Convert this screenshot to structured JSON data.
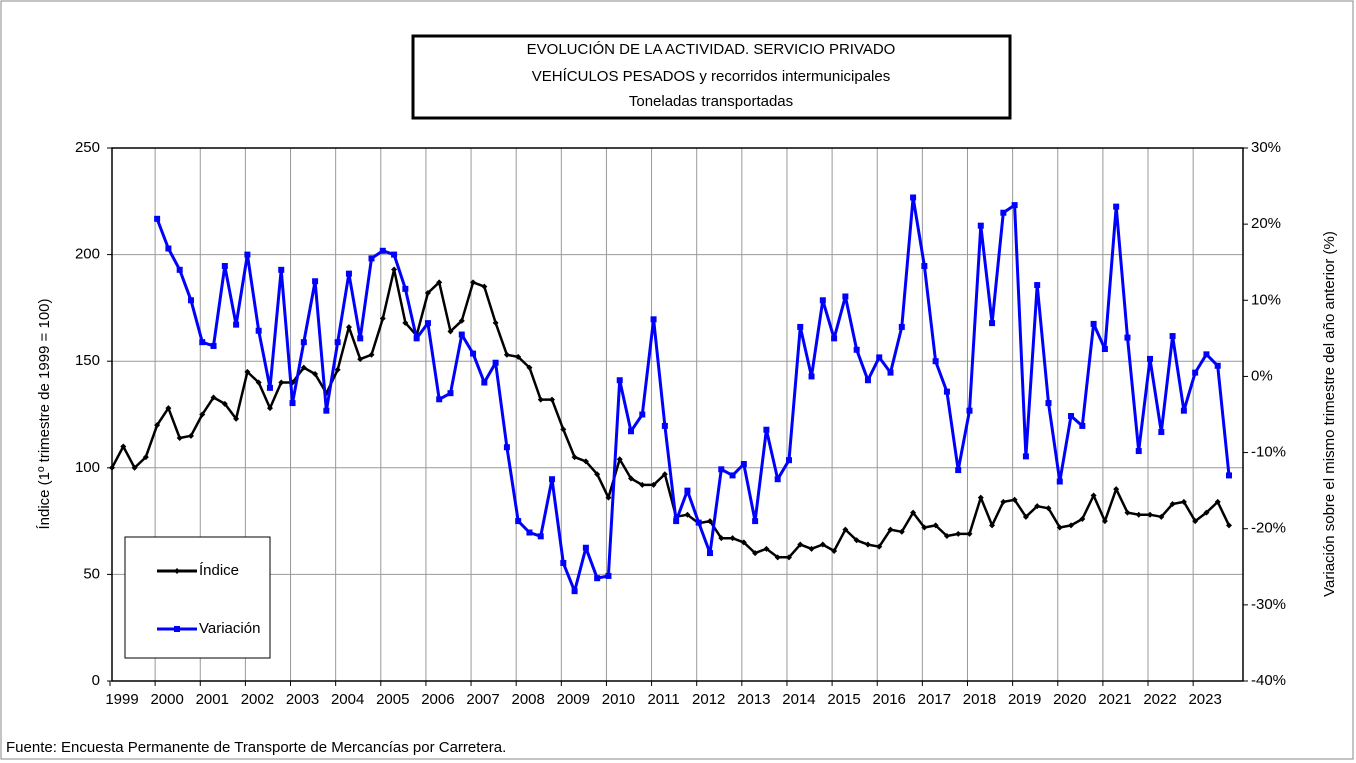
{
  "chart_data": {
    "type": "line",
    "title": [
      "EVOLUCIÓN  DE LA ACTIVIDAD.  SERVICIO  PRIVADO",
      "VEHÍCULOS    PESADOS   y  recorridos  intermunicipales",
      "Toneladas transportadas"
    ],
    "ylabel": "Índice (1º trimestre de 1999 = 100)",
    "y2label": "Variación sobre el mismo trimestre del año anterior (%)",
    "source": "Fuente: Encuesta Permanente de Transporte de Mercancías por Carretera.",
    "categories": [
      "1999",
      null,
      null,
      null,
      "2000",
      null,
      null,
      null,
      "2001",
      null,
      null,
      null,
      "2002",
      null,
      null,
      null,
      "2003",
      null,
      null,
      null,
      "2004",
      null,
      null,
      null,
      "2005",
      null,
      null,
      null,
      "2006",
      null,
      null,
      null,
      "2007",
      null,
      null,
      null,
      "2008",
      null,
      null,
      null,
      "2009",
      null,
      null,
      null,
      "2010",
      null,
      null,
      null,
      "2011",
      null,
      null,
      null,
      "2012",
      null,
      null,
      null,
      "2013",
      null,
      null,
      null,
      "2014",
      null,
      null,
      null,
      "2015",
      null,
      null,
      null,
      "2016",
      null,
      null,
      null,
      "2017",
      null,
      null,
      null,
      "2018",
      null,
      null,
      null,
      "2019",
      null,
      null,
      null,
      "2020",
      null,
      null,
      null,
      "2021",
      null,
      null,
      null,
      "2022",
      null,
      null,
      null,
      "2023",
      null,
      null,
      null
    ],
    "series": [
      {
        "name": "Índice",
        "color": "#000000",
        "values": [
          100,
          110,
          100,
          105,
          120,
          128,
          114,
          115,
          125,
          133,
          130,
          123,
          145,
          140,
          128,
          140,
          140,
          147,
          144,
          135,
          146,
          166,
          151,
          153,
          170,
          193,
          168,
          162,
          182,
          187,
          164,
          169,
          187,
          185,
          168,
          153,
          152,
          147,
          132,
          132,
          118,
          105,
          103,
          97,
          86,
          104,
          95,
          92,
          92,
          97,
          77,
          78,
          74,
          75,
          67,
          67,
          65,
          60,
          62,
          58,
          58,
          64,
          62,
          64,
          61,
          71,
          66,
          64,
          63,
          71,
          70,
          79,
          72,
          73,
          68,
          69,
          69,
          86,
          73,
          84,
          85,
          77,
          82,
          81,
          72,
          73,
          76,
          87,
          75,
          90,
          79,
          78,
          78,
          77,
          83,
          84,
          75,
          79,
          84,
          73
        ]
      },
      {
        "name": "Variación",
        "color": "#0000ff",
        "axis": "y2",
        "values": [
          null,
          null,
          null,
          null,
          20.7,
          16.8,
          14.0,
          10.0,
          4.5,
          4.0,
          14.5,
          6.8,
          16.0,
          6.0,
          -1.5,
          14.0,
          -3.5,
          4.5,
          12.5,
          -4.5,
          4.5,
          13.5,
          5.0,
          15.5,
          16.5,
          16.0,
          11.5,
          5.0,
          7.0,
          -3.0,
          -2.2,
          5.5,
          3.0,
          -0.8,
          1.8,
          -9.3,
          -19.0,
          -20.5,
          -21.0,
          -13.5,
          -24.5,
          -28.2,
          -22.5,
          -26.5,
          -26.2,
          -0.5,
          -7.2,
          -5.0,
          7.5,
          -6.5,
          -19.0,
          -15.0,
          -19.2,
          -23.2,
          -12.2,
          -13.0,
          -11.5,
          -19.0,
          -7.0,
          -13.5,
          -11.0,
          6.5,
          0.0,
          10.0,
          5.0,
          10.5,
          3.5,
          -0.5,
          2.5,
          0.5,
          6.5,
          23.5,
          14.5,
          2.0,
          -2.0,
          -12.3,
          -4.5,
          19.8,
          7.0,
          21.5,
          22.5,
          -10.5,
          12.0,
          -3.5,
          -13.8,
          -5.2,
          -6.5,
          6.9,
          3.6,
          22.3,
          5.1,
          -9.8,
          2.3,
          -7.3,
          5.3,
          -4.5,
          0.5,
          2.9,
          1.4,
          -13.0
        ]
      }
    ],
    "ylim": [
      0,
      250
    ],
    "yticks": [
      0,
      50,
      100,
      150,
      200,
      250
    ],
    "y2lim": [
      -40,
      30
    ],
    "y2ticks": [
      {
        "value": -40,
        "label": "-40%"
      },
      {
        "value": -30,
        "label": "-30%"
      },
      {
        "value": -20,
        "label": "-20%"
      },
      {
        "value": -10,
        "label": "-10%"
      },
      {
        "value": 0,
        "label": "0%"
      },
      {
        "value": 10,
        "label": "10%"
      },
      {
        "value": 20,
        "label": "20%"
      },
      {
        "value": 30,
        "label": "30%"
      }
    ],
    "grid": true,
    "legend": "lower left"
  }
}
